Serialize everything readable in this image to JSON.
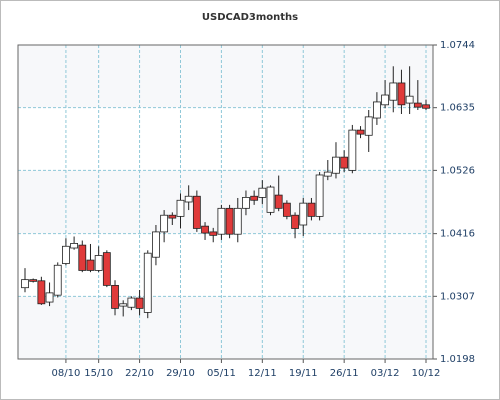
{
  "chart_data": {
    "type": "candlestick",
    "title": "USDCAD3months",
    "categories": [
      null,
      null,
      null,
      null,
      null,
      "08/10",
      null,
      null,
      null,
      "15/10",
      null,
      null,
      null,
      null,
      "22/10",
      null,
      null,
      null,
      null,
      "29/10",
      null,
      null,
      null,
      null,
      "05/11",
      null,
      null,
      null,
      null,
      "12/11",
      null,
      null,
      null,
      null,
      "19/11",
      null,
      null,
      null,
      null,
      "26/11",
      null,
      null,
      null,
      null,
      "03/12",
      null,
      null,
      null,
      null,
      "10/12"
    ],
    "open": [
      1.0322,
      1.0336,
      1.0334,
      1.0297,
      1.0309,
      1.0364,
      1.0391,
      1.0396,
      1.037,
      1.0352,
      1.0383,
      1.0326,
      1.029,
      1.0288,
      1.0304,
      1.0279,
      1.0375,
      1.0419,
      1.0448,
      1.0446,
      1.0471,
      1.0481,
      1.0429,
      1.0419,
      1.0415,
      1.046,
      1.0415,
      1.046,
      1.0481,
      1.0479,
      1.0453,
      1.0483,
      1.0469,
      1.0448,
      1.0431,
      1.0469,
      1.0446,
      1.0516,
      1.0521,
      1.0549,
      1.0526,
      1.0596,
      1.0587,
      1.0617,
      1.064,
      1.0648,
      1.0678,
      1.0643,
      1.0643,
      1.064
    ],
    "high": [
      1.0356,
      1.0338,
      1.0341,
      1.0331,
      1.0366,
      1.0408,
      1.0411,
      1.0404,
      1.0398,
      1.0394,
      1.0387,
      1.0335,
      1.03,
      1.0307,
      1.0318,
      1.0387,
      1.0431,
      1.0457,
      1.0453,
      1.0486,
      1.05,
      1.0491,
      1.0436,
      1.0426,
      1.0466,
      1.0466,
      1.0478,
      1.0491,
      1.0491,
      1.0509,
      1.05,
      1.0517,
      1.0474,
      1.0453,
      1.0478,
      1.0478,
      1.0523,
      1.0544,
      1.0575,
      1.0561,
      1.0605,
      1.0603,
      1.0631,
      1.0662,
      1.0683,
      1.0707,
      1.0701,
      1.0707,
      1.0683,
      1.0649
    ],
    "low": [
      1.0314,
      1.0331,
      1.0292,
      1.029,
      1.0305,
      1.0361,
      1.0388,
      1.0349,
      1.0349,
      1.0349,
      1.0323,
      1.0274,
      1.0272,
      1.0283,
      1.0274,
      1.0269,
      1.0361,
      1.0401,
      1.0431,
      1.0425,
      1.0457,
      1.0419,
      1.0405,
      1.0401,
      1.0405,
      1.0408,
      1.0401,
      1.0448,
      1.0466,
      1.0467,
      1.0448,
      1.0455,
      1.0441,
      1.0408,
      1.0412,
      1.0439,
      1.0439,
      1.0509,
      1.0512,
      1.0523,
      1.0521,
      1.0582,
      1.0558,
      1.0605,
      1.0634,
      1.0627,
      1.0624,
      1.0624,
      1.0631,
      1.0631
    ],
    "close": [
      1.0336,
      1.0333,
      1.0294,
      1.0313,
      1.0361,
      1.0394,
      1.0399,
      1.0352,
      1.0352,
      1.0378,
      1.0326,
      1.0286,
      1.0294,
      1.0304,
      1.0286,
      1.0382,
      1.0419,
      1.0448,
      1.0443,
      1.0474,
      1.0481,
      1.0425,
      1.0417,
      1.0413,
      1.046,
      1.0415,
      1.046,
      1.0479,
      1.0474,
      1.0495,
      1.0497,
      1.046,
      1.0446,
      1.0425,
      1.0469,
      1.0446,
      1.0518,
      1.0523,
      1.0549,
      1.053,
      1.0596,
      1.0589,
      1.0619,
      1.0645,
      1.0657,
      1.0678,
      1.064,
      1.0655,
      1.0636,
      1.0634
    ],
    "up_color": "#ffffff",
    "down_color": "#e03a3a",
    "ylim": [
      1.0198,
      1.0744
    ],
    "yticks": [
      1.0198,
      1.0307,
      1.0416,
      1.0526,
      1.0635,
      1.0744
    ],
    "grid": true
  }
}
